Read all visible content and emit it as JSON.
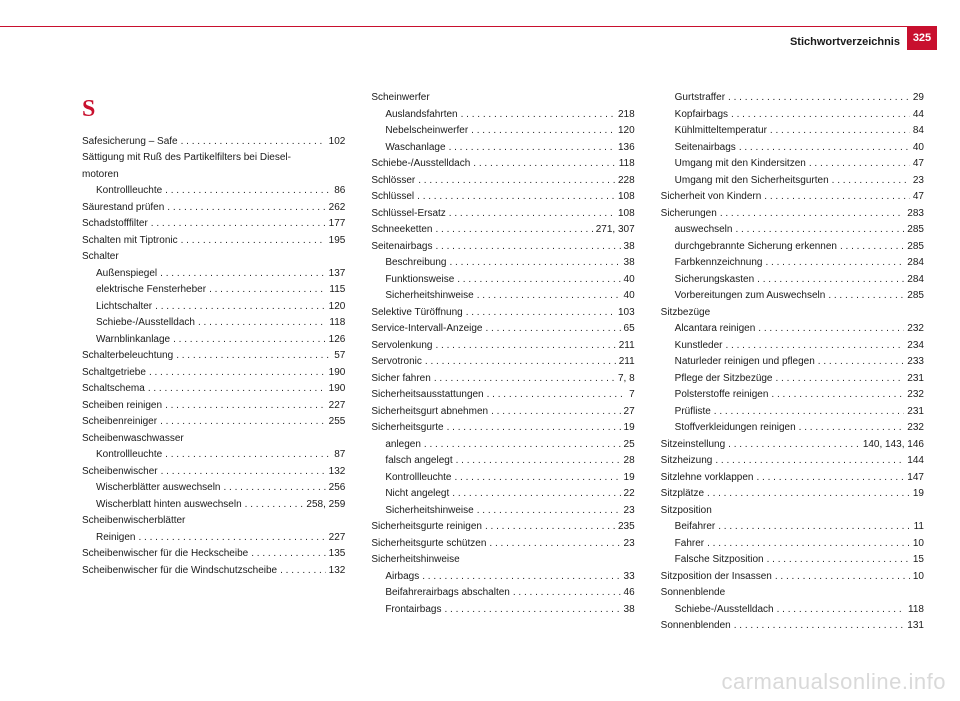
{
  "header": {
    "title": "Stichwortverzeichnis",
    "pageNumber": "325"
  },
  "letter": "S",
  "columns": [
    [
      {
        "t": "Safesicherung – Safe",
        "p": "102"
      },
      {
        "t": "Sättigung mit Ruß des Partikelfilters bei Diesel-"
      },
      {
        "t": "motoren",
        "cont": true
      },
      {
        "t": "Kontrollleuchte",
        "p": "86",
        "sub": true
      },
      {
        "t": "Säurestand prüfen",
        "p": "262"
      },
      {
        "t": "Schadstofffilter",
        "p": "177"
      },
      {
        "t": "Schalten mit Tiptronic",
        "p": "195"
      },
      {
        "t": "Schalter"
      },
      {
        "t": "Außenspiegel",
        "p": "137",
        "sub": true
      },
      {
        "t": "elektrische Fensterheber",
        "p": "115",
        "sub": true
      },
      {
        "t": "Lichtschalter",
        "p": "120",
        "sub": true
      },
      {
        "t": "Schiebe-/Ausstelldach",
        "p": "118",
        "sub": true
      },
      {
        "t": "Warnblinkanlage",
        "p": "126",
        "sub": true
      },
      {
        "t": "Schalterbeleuchtung",
        "p": "57"
      },
      {
        "t": "Schaltgetriebe",
        "p": "190"
      },
      {
        "t": "Schaltschema",
        "p": "190"
      },
      {
        "t": "Scheiben reinigen",
        "p": "227"
      },
      {
        "t": "Scheibenreiniger",
        "p": "255"
      },
      {
        "t": "Scheibenwaschwasser"
      },
      {
        "t": "Kontrollleuchte",
        "p": "87",
        "sub": true
      },
      {
        "t": "Scheibenwischer",
        "p": "132"
      },
      {
        "t": "Wischerblätter auswechseln",
        "p": "256",
        "sub": true
      },
      {
        "t": "Wischerblatt hinten auswechseln",
        "p": "258, 259",
        "sub": true
      },
      {
        "t": "Scheibenwischerblätter"
      },
      {
        "t": "Reinigen",
        "p": "227",
        "sub": true
      },
      {
        "t": "Scheibenwischer für die Heckscheibe",
        "p": "135"
      },
      {
        "t": "Scheibenwischer für die Windschutzscheibe",
        "p": "132"
      }
    ],
    [
      {
        "t": "Scheinwerfer"
      },
      {
        "t": "Auslandsfahrten",
        "p": "218",
        "sub": true
      },
      {
        "t": "Nebelscheinwerfer",
        "p": "120",
        "sub": true
      },
      {
        "t": "Waschanlage",
        "p": "136",
        "sub": true
      },
      {
        "t": "Schiebe-/Ausstelldach",
        "p": "118"
      },
      {
        "t": "Schlösser",
        "p": "228"
      },
      {
        "t": "Schlüssel",
        "p": "108"
      },
      {
        "t": "Schlüssel-Ersatz",
        "p": "108"
      },
      {
        "t": "Schneeketten",
        "p": "271, 307"
      },
      {
        "t": "Seitenairbags",
        "p": "38"
      },
      {
        "t": "Beschreibung",
        "p": "38",
        "sub": true
      },
      {
        "t": "Funktionsweise",
        "p": "40",
        "sub": true
      },
      {
        "t": "Sicherheitshinweise",
        "p": "40",
        "sub": true
      },
      {
        "t": "Selektive Türöffnung",
        "p": "103"
      },
      {
        "t": "Service-Intervall-Anzeige",
        "p": "65"
      },
      {
        "t": "Servolenkung",
        "p": "211"
      },
      {
        "t": "Servotronic",
        "p": "211"
      },
      {
        "t": "Sicher fahren",
        "p": "7, 8"
      },
      {
        "t": "Sicherheitsausstattungen",
        "p": "7"
      },
      {
        "t": "Sicherheitsgurt abnehmen",
        "p": "27"
      },
      {
        "t": "Sicherheitsgurte",
        "p": "19"
      },
      {
        "t": "anlegen",
        "p": "25",
        "sub": true
      },
      {
        "t": "falsch angelegt",
        "p": "28",
        "sub": true
      },
      {
        "t": "Kontrollleuchte",
        "p": "19",
        "sub": true
      },
      {
        "t": "Nicht angelegt",
        "p": "22",
        "sub": true
      },
      {
        "t": "Sicherheitshinweise",
        "p": "23",
        "sub": true
      },
      {
        "t": "Sicherheitsgurte reinigen",
        "p": "235"
      },
      {
        "t": "Sicherheitsgurte schützen",
        "p": "23"
      },
      {
        "t": "Sicherheitshinweise"
      },
      {
        "t": "Airbags",
        "p": "33",
        "sub": true
      },
      {
        "t": "Beifahrerairbags abschalten",
        "p": "46",
        "sub": true
      },
      {
        "t": "Frontairbags",
        "p": "38",
        "sub": true
      }
    ],
    [
      {
        "t": "Gurtstraffer",
        "p": "29",
        "sub": true
      },
      {
        "t": "Kopfairbags",
        "p": "44",
        "sub": true
      },
      {
        "t": "Kühlmitteltemperatur",
        "p": "84",
        "sub": true
      },
      {
        "t": "Seitenairbags",
        "p": "40",
        "sub": true
      },
      {
        "t": "Umgang mit den Kindersitzen",
        "p": "47",
        "sub": true
      },
      {
        "t": "Umgang mit den Sicherheitsgurten",
        "p": "23",
        "sub": true
      },
      {
        "t": "Sicherheit von Kindern",
        "p": "47"
      },
      {
        "t": "Sicherungen",
        "p": "283"
      },
      {
        "t": "auswechseln",
        "p": "285",
        "sub": true
      },
      {
        "t": "durchgebrannte Sicherung erkennen",
        "p": "285",
        "sub": true
      },
      {
        "t": "Farbkennzeichnung",
        "p": "284",
        "sub": true
      },
      {
        "t": "Sicherungskasten",
        "p": "284",
        "sub": true
      },
      {
        "t": "Vorbereitungen zum Auswechseln",
        "p": "285",
        "sub": true
      },
      {
        "t": "Sitzbezüge"
      },
      {
        "t": "Alcantara reinigen",
        "p": "232",
        "sub": true
      },
      {
        "t": "Kunstleder",
        "p": "234",
        "sub": true
      },
      {
        "t": "Naturleder reinigen und pflegen",
        "p": "233",
        "sub": true
      },
      {
        "t": "Pflege der Sitzbezüge",
        "p": "231",
        "sub": true
      },
      {
        "t": "Polsterstoffe reinigen",
        "p": "232",
        "sub": true
      },
      {
        "t": "Prüfliste",
        "p": "231",
        "sub": true
      },
      {
        "t": "Stoffverkleidungen reinigen",
        "p": "232",
        "sub": true
      },
      {
        "t": "Sitzeinstellung",
        "p": "140, 143, 146"
      },
      {
        "t": "Sitzheizung",
        "p": "144"
      },
      {
        "t": "Sitzlehne vorklappen",
        "p": "147"
      },
      {
        "t": "Sitzplätze",
        "p": "19"
      },
      {
        "t": "Sitzposition"
      },
      {
        "t": "Beifahrer",
        "p": "11",
        "sub": true
      },
      {
        "t": "Fahrer",
        "p": "10",
        "sub": true
      },
      {
        "t": "Falsche Sitzposition",
        "p": "15",
        "sub": true
      },
      {
        "t": "Sitzposition der Insassen",
        "p": "10"
      },
      {
        "t": "Sonnenblende"
      },
      {
        "t": "Schiebe-/Ausstelldach",
        "p": "118",
        "sub": true
      },
      {
        "t": "Sonnenblenden",
        "p": "131"
      }
    ]
  ],
  "watermark": "carmanualsonline.info"
}
